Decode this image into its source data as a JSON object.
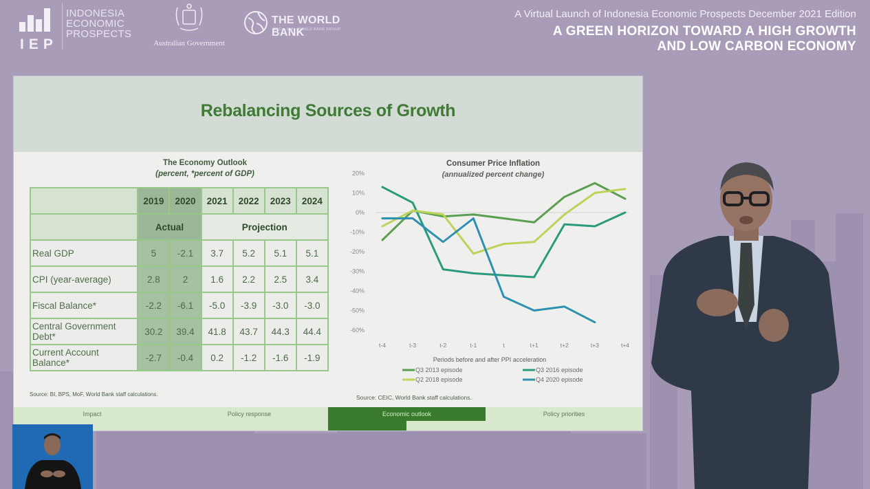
{
  "header": {
    "iep_logo": {
      "mark": "IEP",
      "name_lines": [
        "INDONESIA",
        "ECONOMIC",
        "PROSPECTS"
      ]
    },
    "australian_government_logo": {
      "text": "Australian Government"
    },
    "world_bank_logo": {
      "text": "THE WORLD BANK",
      "subtext": "IBRD · IDA · WORLD BANK GROUP"
    },
    "event_subtitle": "A Virtual Launch of Indonesia Economic Prospects December 2021 Edition",
    "event_title_line1": "A GREEN HORIZON TOWARD A HIGH GROWTH",
    "event_title_line2": "AND LOW CARBON ECONOMY"
  },
  "slide": {
    "title": "Rebalancing Sources of Growth",
    "table": {
      "title": "The Economy Outlook",
      "subtitle": "(percent, *percent of GDP)",
      "years": [
        "2019",
        "2020",
        "2021",
        "2022",
        "2023",
        "2024"
      ],
      "groups": {
        "actual": "Actual",
        "projection": "Projection"
      },
      "rows": [
        {
          "label": "Real GDP",
          "values": [
            "5",
            "-2.1",
            "3.7",
            "5.2",
            "5.1",
            "5.1"
          ]
        },
        {
          "label": "CPI (year-average)",
          "values": [
            "2.8",
            "2",
            "1.6",
            "2.2",
            "2.5",
            "3.4"
          ]
        },
        {
          "label": "Fiscal Balance*",
          "values": [
            "-2.2",
            "-6.1",
            "-5.0",
            "-3.9",
            "-3.0",
            "-3.0"
          ]
        },
        {
          "label": "Central Government Debt*",
          "values": [
            "30.2",
            "39.4",
            "41.8",
            "43.7",
            "44.3",
            "44.4"
          ]
        },
        {
          "label": "Current Account Balance*",
          "values": [
            "-2.7",
            "-0.4",
            "0.2",
            "-1.2",
            "-1.6",
            "-1.9"
          ]
        }
      ],
      "source": "Source: BI, BPS, MoF, World Bank staff calculations."
    },
    "chart_source": "Source: CEIC, World Bank staff calculations.",
    "nav": [
      {
        "label": "Impact",
        "active": false
      },
      {
        "label": "Policy response",
        "active": false
      },
      {
        "label": "Economic outlook",
        "active": true
      },
      {
        "label": "Policy priorities",
        "active": false
      }
    ]
  },
  "colors": {
    "background": "#a99cb9",
    "title_green": "#3f7b35",
    "nav_active": "#3a7a2c"
  },
  "chart_data": {
    "type": "line",
    "title": "Consumer Price Inflation",
    "subtitle": "(annualized percent change)",
    "xlabel": "Periods before and after PPI acceleration",
    "ylabel": "",
    "x": [
      "t-4",
      "t-3",
      "t-2",
      "t-1",
      "t",
      "t+1",
      "t+2",
      "t+3",
      "t+4"
    ],
    "ylim": [
      -60,
      20
    ],
    "yticks": [
      20,
      10,
      0,
      -10,
      -20,
      -30,
      -40,
      -50,
      -60
    ],
    "ytick_labels": [
      "20%",
      "10%",
      "0%",
      "-10%",
      "-20%",
      "-30%",
      "-40%",
      "-50%",
      "-60%"
    ],
    "grid": false,
    "zero_line": true,
    "legend_position": "bottom",
    "series": [
      {
        "name": "Q3 2013 episode",
        "color": "#5a9e4f",
        "values": [
          -14,
          1,
          -2,
          -1,
          -3,
          -5,
          8,
          15,
          7
        ]
      },
      {
        "name": "Q3 2016 episode",
        "color": "#2a9a7c",
        "values": [
          13,
          5,
          -29,
          -31,
          -32,
          -33,
          -6,
          -7,
          0
        ]
      },
      {
        "name": "Q2 2018 episode",
        "color": "#bcd35a",
        "values": [
          -7,
          1,
          -1,
          -21,
          -16,
          -15,
          -1,
          10,
          12
        ]
      },
      {
        "name": "Q4 2020 episode",
        "color": "#2f8fb0",
        "values": [
          -3,
          -3,
          -15,
          -3,
          -43,
          -50,
          -48,
          -56,
          null
        ]
      }
    ]
  }
}
